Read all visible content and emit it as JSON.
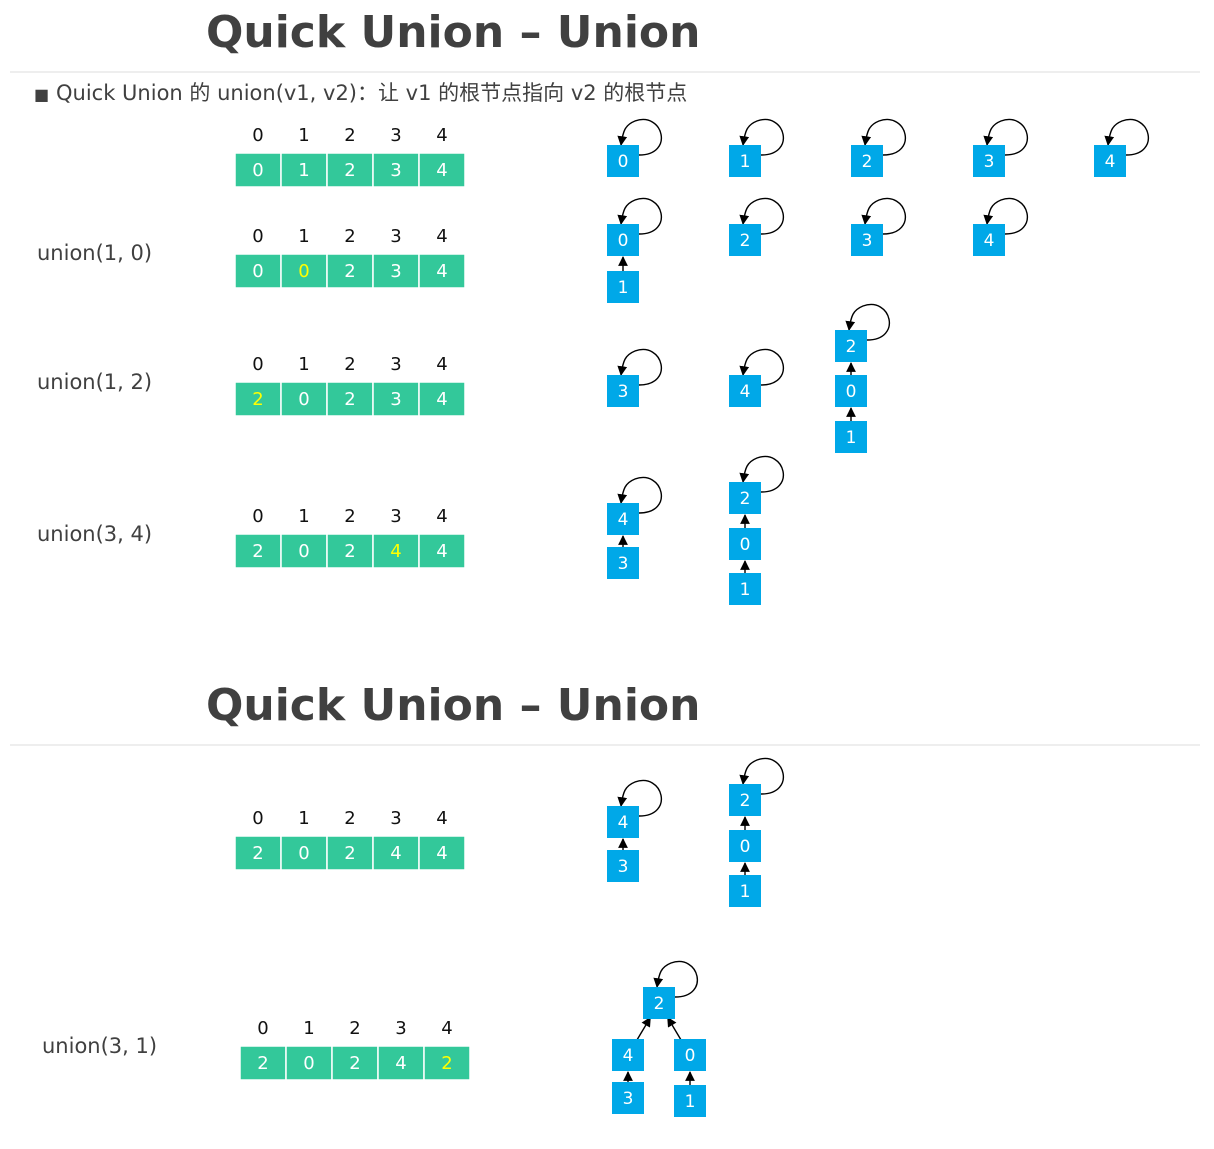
{
  "colors": {
    "array_cell": "#33C89A",
    "array_border": "#ffffff",
    "value_text": "#ffffff",
    "changed_value_text": "#FFFF00",
    "node_fill": "#00A8E8",
    "title_text": "#404040"
  },
  "slides": [
    {
      "title": "Quick Union – Union",
      "subtitle_bullet": "■",
      "subtitle": "Quick Union 的 union(v1, v2)：让 v1 的根节点指向 v2 的根节点",
      "rows": [
        {
          "op": "",
          "indices": [
            "0",
            "1",
            "2",
            "3",
            "4"
          ],
          "values": [
            "0",
            "1",
            "2",
            "3",
            "4"
          ],
          "changed": -1,
          "nodes": [
            {
              "id": "0",
              "self": true
            },
            {
              "id": "1",
              "self": true
            },
            {
              "id": "2",
              "self": true
            },
            {
              "id": "3",
              "self": true
            },
            {
              "id": "4",
              "self": true
            }
          ]
        },
        {
          "op": "union(1, 0)",
          "indices": [
            "0",
            "1",
            "2",
            "3",
            "4"
          ],
          "values": [
            "0",
            "0",
            "2",
            "3",
            "4"
          ],
          "changed": 1,
          "nodes": [
            {
              "id": "0",
              "self": true
            },
            {
              "id": "1",
              "parent": "0"
            },
            {
              "id": "2",
              "self": true
            },
            {
              "id": "3",
              "self": true
            },
            {
              "id": "4",
              "self": true
            }
          ]
        },
        {
          "op": "union(1, 2)",
          "indices": [
            "0",
            "1",
            "2",
            "3",
            "4"
          ],
          "values": [
            "2",
            "0",
            "2",
            "3",
            "4"
          ],
          "changed": 0,
          "nodes": [
            {
              "id": "3",
              "self": true
            },
            {
              "id": "4",
              "self": true
            },
            {
              "id": "2",
              "self": true
            },
            {
              "id": "0",
              "parent": "2"
            },
            {
              "id": "1",
              "parent": "0"
            }
          ]
        },
        {
          "op": "union(3, 4)",
          "indices": [
            "0",
            "1",
            "2",
            "3",
            "4"
          ],
          "values": [
            "2",
            "0",
            "2",
            "4",
            "4"
          ],
          "changed": 3,
          "nodes": [
            {
              "id": "4",
              "self": true
            },
            {
              "id": "3",
              "parent": "4"
            },
            {
              "id": "2",
              "self": true
            },
            {
              "id": "0",
              "parent": "2"
            },
            {
              "id": "1",
              "parent": "0"
            }
          ]
        }
      ]
    },
    {
      "title": "Quick Union – Union",
      "rows": [
        {
          "op": "",
          "indices": [
            "0",
            "1",
            "2",
            "3",
            "4"
          ],
          "values": [
            "2",
            "0",
            "2",
            "4",
            "4"
          ],
          "changed": -1,
          "nodes": [
            {
              "id": "4",
              "self": true
            },
            {
              "id": "3",
              "parent": "4"
            },
            {
              "id": "2",
              "self": true
            },
            {
              "id": "0",
              "parent": "2"
            },
            {
              "id": "1",
              "parent": "0"
            }
          ]
        },
        {
          "op": "union(3, 1)",
          "indices": [
            "0",
            "1",
            "2",
            "3",
            "4"
          ],
          "values": [
            "2",
            "0",
            "2",
            "4",
            "2"
          ],
          "changed": 4,
          "nodes": [
            {
              "id": "2",
              "self": true
            },
            {
              "id": "4",
              "parent": "2"
            },
            {
              "id": "0",
              "parent": "2"
            },
            {
              "id": "3",
              "parent": "4"
            },
            {
              "id": "1",
              "parent": "0"
            }
          ]
        }
      ]
    }
  ]
}
